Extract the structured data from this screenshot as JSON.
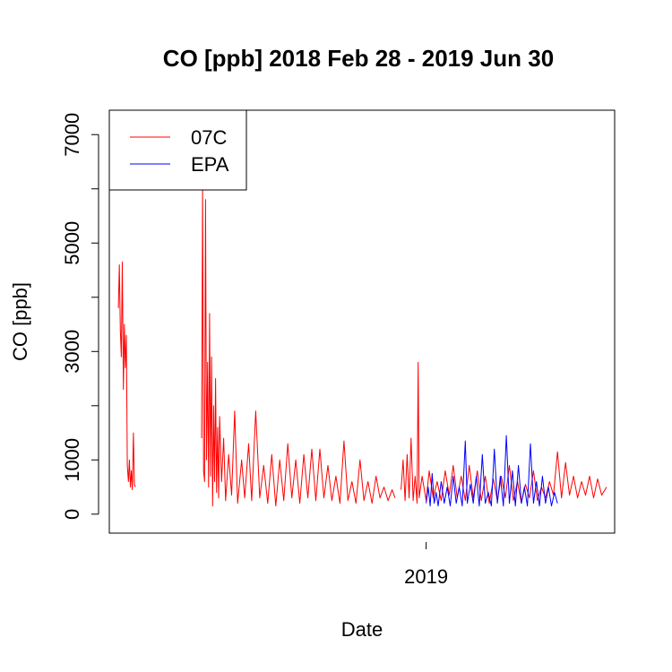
{
  "chart_data": {
    "type": "line",
    "title": "CO [ppb] 2018 Feb 28 - 2019 Jun 30",
    "xlabel": "Date",
    "ylabel": "CO [ppb]",
    "xlim": [
      "2018-02-19",
      "2019-07-08"
    ],
    "ylim": [
      -350,
      7450
    ],
    "x_ticks": [
      {
        "value": "2019-01-01",
        "label": "2019"
      }
    ],
    "y_ticks": [
      0,
      1000,
      2000,
      3000,
      4000,
      5000,
      6000,
      7000
    ],
    "y_tick_labels": [
      "0",
      "1000",
      "3000",
      "5000",
      "7000"
    ],
    "grid": false,
    "legend": {
      "position": "top-left",
      "entries": [
        {
          "label": "07C",
          "color": "#ff0000"
        },
        {
          "label": "EPA",
          "color": "#0000ff"
        }
      ]
    },
    "series": [
      {
        "name": "07C",
        "color": "#ff0000",
        "points": [
          [
            "2018-02-28",
            3800
          ],
          [
            "2018-03-01",
            4600
          ],
          [
            "2018-03-02",
            3400
          ],
          [
            "2018-03-03",
            2900
          ],
          [
            "2018-03-04",
            4650
          ],
          [
            "2018-03-05",
            2300
          ],
          [
            "2018-03-06",
            3500
          ],
          [
            "2018-03-07",
            2700
          ],
          [
            "2018-03-08",
            3300
          ],
          [
            "2018-03-09",
            900
          ],
          [
            "2018-03-10",
            600
          ],
          [
            "2018-03-11",
            1000
          ],
          [
            "2018-03-12",
            500
          ],
          [
            "2018-03-13",
            800
          ],
          [
            "2018-03-14",
            450
          ],
          [
            "2018-03-15",
            1500
          ],
          [
            "2018-03-16",
            550
          ],
          [
            "2018-03-17",
            500
          ],
          null,
          [
            "2018-05-22",
            1400
          ],
          [
            "2018-05-23",
            6000
          ],
          [
            "2018-05-24",
            800
          ],
          [
            "2018-05-25",
            600
          ],
          [
            "2018-05-26",
            5800
          ],
          [
            "2018-05-27",
            1000
          ],
          [
            "2018-05-28",
            2800
          ],
          [
            "2018-05-29",
            500
          ],
          [
            "2018-05-30",
            3700
          ],
          [
            "2018-05-31",
            700
          ],
          [
            "2018-06-01",
            2900
          ],
          [
            "2018-06-02",
            150
          ],
          [
            "2018-06-03",
            2000
          ],
          [
            "2018-06-04",
            600
          ],
          [
            "2018-06-05",
            2500
          ],
          [
            "2018-06-06",
            400
          ],
          [
            "2018-06-07",
            1600
          ],
          [
            "2018-06-08",
            300
          ],
          [
            "2018-06-09",
            1800
          ],
          [
            "2018-06-11",
            600
          ],
          [
            "2018-06-13",
            1400
          ],
          [
            "2018-06-15",
            250
          ],
          [
            "2018-06-18",
            1100
          ],
          [
            "2018-06-21",
            350
          ],
          [
            "2018-06-24",
            1900
          ],
          [
            "2018-06-27",
            200
          ],
          [
            "2018-07-01",
            1000
          ],
          [
            "2018-07-04",
            300
          ],
          [
            "2018-07-08",
            1300
          ],
          [
            "2018-07-11",
            250
          ],
          [
            "2018-07-15",
            1900
          ],
          [
            "2018-07-19",
            300
          ],
          [
            "2018-07-23",
            900
          ],
          [
            "2018-07-27",
            200
          ],
          [
            "2018-07-31",
            1100
          ],
          [
            "2018-08-04",
            150
          ],
          [
            "2018-08-08",
            1000
          ],
          [
            "2018-08-12",
            250
          ],
          [
            "2018-08-16",
            1300
          ],
          [
            "2018-08-20",
            300
          ],
          [
            "2018-08-24",
            1000
          ],
          [
            "2018-08-28",
            200
          ],
          [
            "2018-09-01",
            1100
          ],
          [
            "2018-09-05",
            300
          ],
          [
            "2018-09-09",
            1200
          ],
          [
            "2018-09-13",
            250
          ],
          [
            "2018-09-17",
            1200
          ],
          [
            "2018-09-21",
            300
          ],
          [
            "2018-09-25",
            900
          ],
          [
            "2018-09-29",
            250
          ],
          [
            "2018-10-03",
            700
          ],
          [
            "2018-10-07",
            200
          ],
          [
            "2018-10-11",
            1350
          ],
          [
            "2018-10-15",
            250
          ],
          [
            "2018-10-19",
            600
          ],
          [
            "2018-10-23",
            200
          ],
          [
            "2018-10-27",
            1000
          ],
          [
            "2018-10-31",
            250
          ],
          [
            "2018-11-04",
            600
          ],
          [
            "2018-11-08",
            200
          ],
          [
            "2018-11-12",
            700
          ],
          [
            "2018-11-16",
            300
          ],
          [
            "2018-11-20",
            500
          ],
          [
            "2018-11-24",
            250
          ],
          [
            "2018-11-28",
            450
          ],
          [
            "2018-12-01",
            300
          ],
          null,
          [
            "2018-12-07",
            450
          ],
          [
            "2018-12-09",
            1000
          ],
          [
            "2018-12-11",
            250
          ],
          [
            "2018-12-13",
            1100
          ],
          [
            "2018-12-15",
            300
          ],
          [
            "2018-12-17",
            1400
          ],
          [
            "2018-12-19",
            250
          ],
          [
            "2018-12-21",
            700
          ],
          [
            "2018-12-23",
            200
          ],
          [
            "2018-12-24",
            2800
          ],
          [
            "2018-12-25",
            300
          ],
          [
            "2018-12-28",
            700
          ],
          [
            "2019-01-01",
            250
          ],
          [
            "2019-01-04",
            800
          ],
          [
            "2019-01-08",
            300
          ],
          [
            "2019-01-12",
            600
          ],
          [
            "2019-01-16",
            250
          ],
          [
            "2019-01-20",
            800
          ],
          [
            "2019-01-24",
            350
          ],
          [
            "2019-01-28",
            900
          ],
          [
            "2019-02-01",
            300
          ],
          [
            "2019-02-05",
            700
          ],
          [
            "2019-02-09",
            250
          ],
          [
            "2019-02-13",
            900
          ],
          [
            "2019-02-17",
            300
          ],
          [
            "2019-02-21",
            800
          ],
          [
            "2019-02-25",
            250
          ],
          [
            "2019-03-01",
            700
          ],
          [
            "2019-03-05",
            200
          ],
          [
            "2019-03-09",
            650
          ],
          [
            "2019-03-13",
            250
          ],
          [
            "2019-03-17",
            700
          ],
          [
            "2019-03-21",
            300
          ],
          [
            "2019-03-25",
            900
          ],
          [
            "2019-03-29",
            250
          ],
          [
            "2019-04-02",
            600
          ],
          [
            "2019-04-06",
            200
          ],
          [
            "2019-04-10",
            550
          ],
          [
            "2019-04-14",
            300
          ],
          [
            "2019-04-18",
            800
          ],
          [
            "2019-04-22",
            250
          ],
          [
            "2019-04-26",
            500
          ],
          [
            "2019-04-30",
            300
          ],
          [
            "2019-05-04",
            600
          ],
          [
            "2019-05-08",
            350
          ],
          [
            "2019-05-12",
            1150
          ],
          [
            "2019-05-16",
            300
          ],
          [
            "2019-05-20",
            950
          ],
          [
            "2019-05-24",
            350
          ],
          [
            "2019-05-28",
            700
          ],
          [
            "2019-06-01",
            300
          ],
          [
            "2019-06-05",
            600
          ],
          [
            "2019-06-09",
            350
          ],
          [
            "2019-06-13",
            700
          ],
          [
            "2019-06-17",
            300
          ],
          [
            "2019-06-21",
            650
          ],
          [
            "2019-06-25",
            350
          ],
          [
            "2019-06-30",
            500
          ]
        ]
      },
      {
        "name": "EPA",
        "color": "#0000ff",
        "points": [
          [
            "2019-01-01",
            200
          ],
          [
            "2019-01-03",
            500
          ],
          [
            "2019-01-05",
            150
          ],
          [
            "2019-01-07",
            750
          ],
          [
            "2019-01-09",
            200
          ],
          [
            "2019-01-11",
            400
          ],
          [
            "2019-01-13",
            150
          ],
          [
            "2019-01-16",
            600
          ],
          [
            "2019-01-19",
            200
          ],
          [
            "2019-01-22",
            500
          ],
          [
            "2019-01-25",
            150
          ],
          [
            "2019-01-28",
            700
          ],
          [
            "2019-01-31",
            200
          ],
          [
            "2019-02-03",
            500
          ],
          [
            "2019-02-06",
            150
          ],
          [
            "2019-02-09",
            1350
          ],
          [
            "2019-02-11",
            200
          ],
          [
            "2019-02-14",
            550
          ],
          [
            "2019-02-17",
            200
          ],
          [
            "2019-02-20",
            700
          ],
          [
            "2019-02-23",
            150
          ],
          [
            "2019-02-26",
            1100
          ],
          [
            "2019-03-01",
            200
          ],
          [
            "2019-03-04",
            400
          ],
          [
            "2019-03-07",
            150
          ],
          [
            "2019-03-10",
            1200
          ],
          [
            "2019-03-13",
            200
          ],
          [
            "2019-03-16",
            700
          ],
          [
            "2019-03-19",
            150
          ],
          [
            "2019-03-22",
            1450
          ],
          [
            "2019-03-25",
            200
          ],
          [
            "2019-03-28",
            800
          ],
          [
            "2019-03-31",
            150
          ],
          [
            "2019-04-03",
            900
          ],
          [
            "2019-04-06",
            200
          ],
          [
            "2019-04-09",
            500
          ],
          [
            "2019-04-12",
            150
          ],
          [
            "2019-04-15",
            1300
          ],
          [
            "2019-04-18",
            200
          ],
          [
            "2019-04-21",
            600
          ],
          [
            "2019-04-24",
            150
          ],
          [
            "2019-04-27",
            700
          ],
          [
            "2019-04-30",
            200
          ],
          [
            "2019-05-03",
            500
          ],
          [
            "2019-05-06",
            150
          ],
          [
            "2019-05-09",
            400
          ],
          [
            "2019-05-12",
            200
          ]
        ]
      }
    ]
  }
}
